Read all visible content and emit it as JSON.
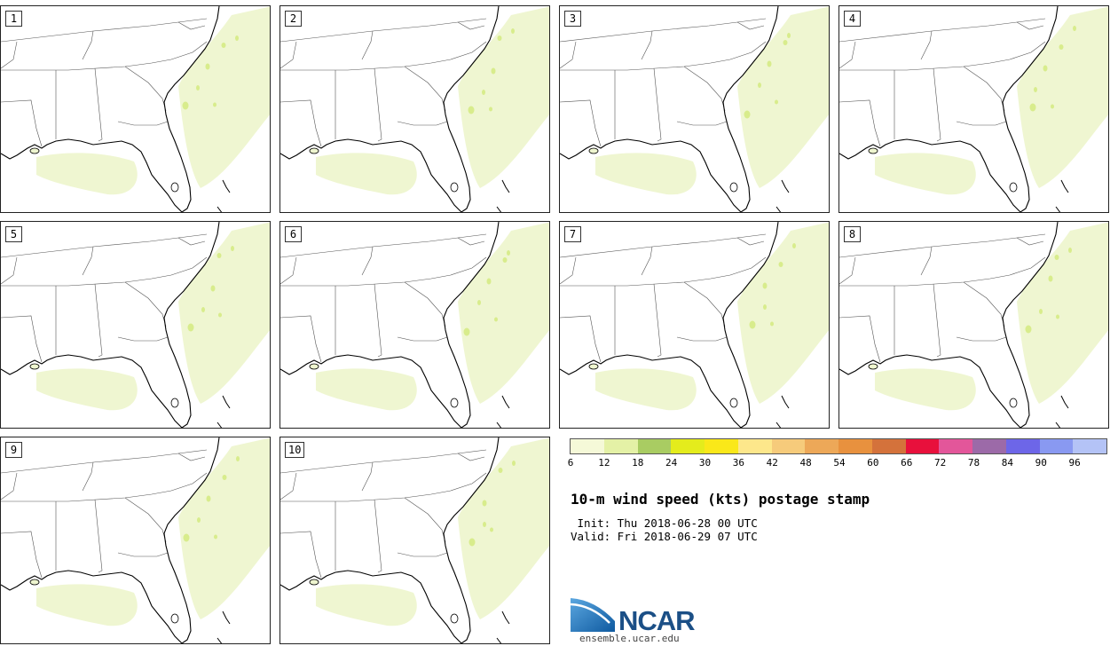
{
  "panels": [
    "1",
    "2",
    "3",
    "4",
    "5",
    "6",
    "7",
    "8",
    "9",
    "10"
  ],
  "colorbar": {
    "colors": [
      "#f5f9d8",
      "#e4f1a6",
      "#a9cc62",
      "#e4ec1c",
      "#fae819",
      "#fde78b",
      "#f6cb7b",
      "#eda858",
      "#e8913e",
      "#d4723b",
      "#e8103c",
      "#e3569a",
      "#9c6aa8",
      "#6d66e8",
      "#8999f1",
      "#b4c3f6"
    ],
    "tick_labels": [
      "6",
      "12",
      "18",
      "24",
      "30",
      "36",
      "42",
      "48",
      "54",
      "60",
      "66",
      "72",
      "78",
      "84",
      "90",
      "96"
    ]
  },
  "title": "10-m wind speed (kts) postage stamp",
  "init": " Init: Thu 2018-06-28 00 UTC",
  "valid": "Valid: Fri 2018-06-29 07 UTC",
  "logo": {
    "name": "NCAR",
    "url": "ensemble.ucar.edu"
  }
}
